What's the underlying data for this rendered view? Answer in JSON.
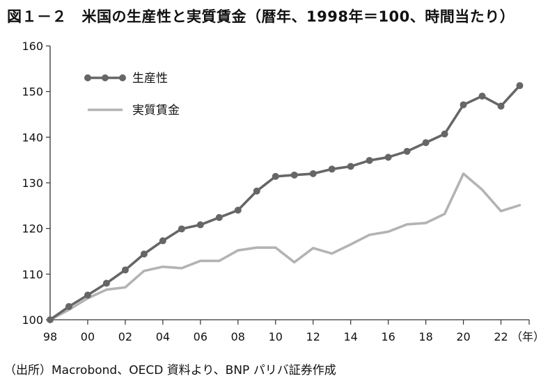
{
  "title": "図１－２　米国の生産性と実質賃金（暦年、1998年＝100、時間当たり）",
  "source_note": "（出所）Macrobond、OECD 資料より、BNP パリバ証券作成",
  "chart_data": {
    "type": "line",
    "title": "図１－２　米国の生産性と実質賃金（暦年、1998年＝100、時間当たり）",
    "xlabel": "（年）",
    "ylabel": "",
    "x": [
      1998,
      1999,
      2000,
      2001,
      2002,
      2003,
      2004,
      2005,
      2006,
      2007,
      2008,
      2009,
      2010,
      2011,
      2012,
      2013,
      2014,
      2015,
      2016,
      2017,
      2018,
      2019,
      2020,
      2021,
      2022,
      2023
    ],
    "xlim": [
      1998,
      2023.5
    ],
    "ylim": [
      100,
      160
    ],
    "x_tick_labels": [
      "98",
      "00",
      "02",
      "04",
      "06",
      "08",
      "10",
      "12",
      "14",
      "16",
      "18",
      "20",
      "22"
    ],
    "y_ticks": [
      100,
      110,
      120,
      130,
      140,
      150,
      160
    ],
    "grid": false,
    "legend": "top-left",
    "series": [
      {
        "name": "生産性",
        "color": "#666666",
        "markers": true,
        "values": [
          100,
          102.9,
          105.4,
          108.0,
          110.9,
          114.4,
          117.3,
          119.9,
          120.8,
          122.4,
          124.0,
          128.2,
          131.4,
          131.7,
          132.0,
          133.0,
          133.6,
          134.9,
          135.6,
          136.9,
          138.8,
          140.7,
          147.1,
          149.0,
          146.8,
          151.3
        ]
      },
      {
        "name": "実質賃金",
        "color": "#b3b3b3",
        "markers": false,
        "values": [
          100,
          102.2,
          104.7,
          106.6,
          107.1,
          110.7,
          111.6,
          111.3,
          112.9,
          112.9,
          115.2,
          115.8,
          115.8,
          112.6,
          115.7,
          114.5,
          116.5,
          118.6,
          119.3,
          120.9,
          121.2,
          123.2,
          132.0,
          128.5,
          123.8,
          125.1
        ]
      }
    ]
  }
}
